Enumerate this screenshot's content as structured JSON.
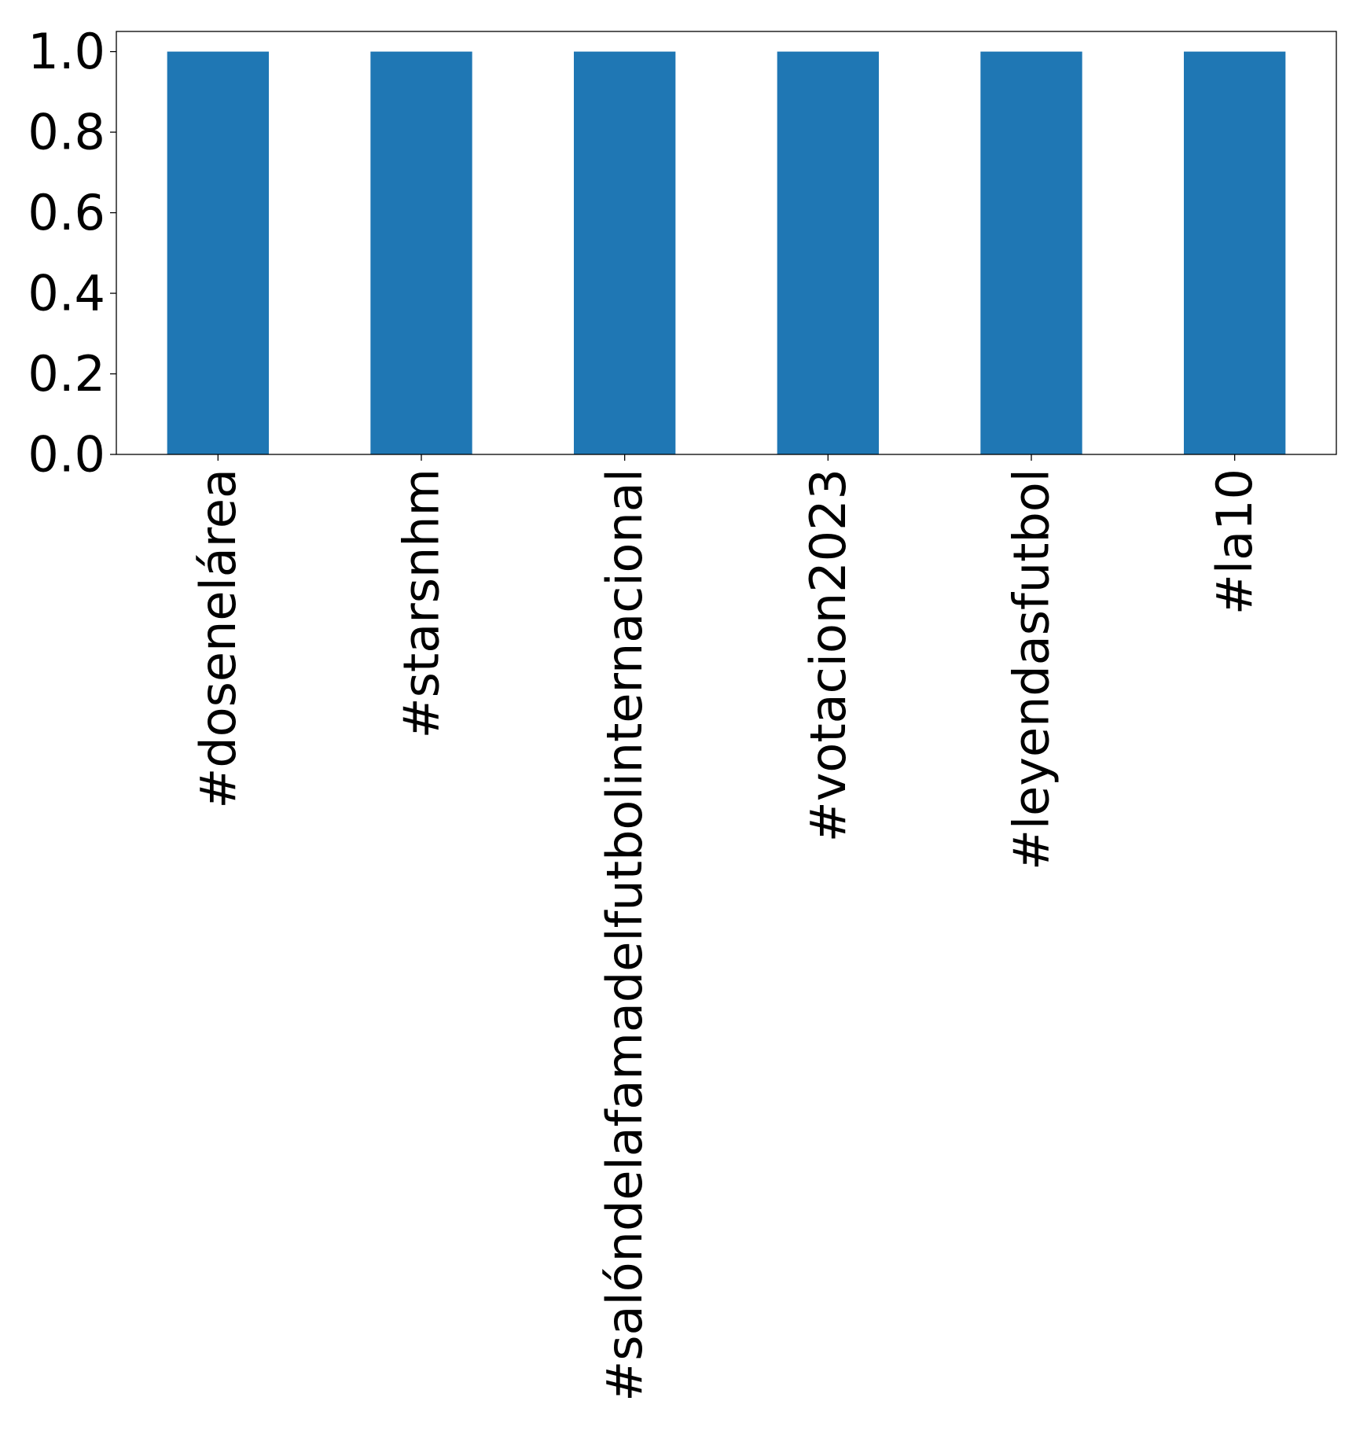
{
  "chart_data": {
    "type": "bar",
    "title": "",
    "xlabel": "",
    "ylabel": "",
    "categories": [
      "#dosenelárea",
      "#starsnhm",
      "#salóndelafamadelfutbolinternacional",
      "#votacion2023",
      "#leyendasfutbol",
      "#la10"
    ],
    "values": [
      1.0,
      1.0,
      1.0,
      1.0,
      1.0,
      1.0
    ],
    "ylim": [
      0.0,
      1.05
    ],
    "yticks": [
      0.0,
      0.2,
      0.4,
      0.6,
      0.8,
      1.0
    ],
    "ytick_labels": [
      "0.0",
      "0.2",
      "0.4",
      "0.6",
      "0.8",
      "1.0"
    ],
    "grid": false,
    "legend": "none",
    "bar_color": "#1f77b4"
  }
}
